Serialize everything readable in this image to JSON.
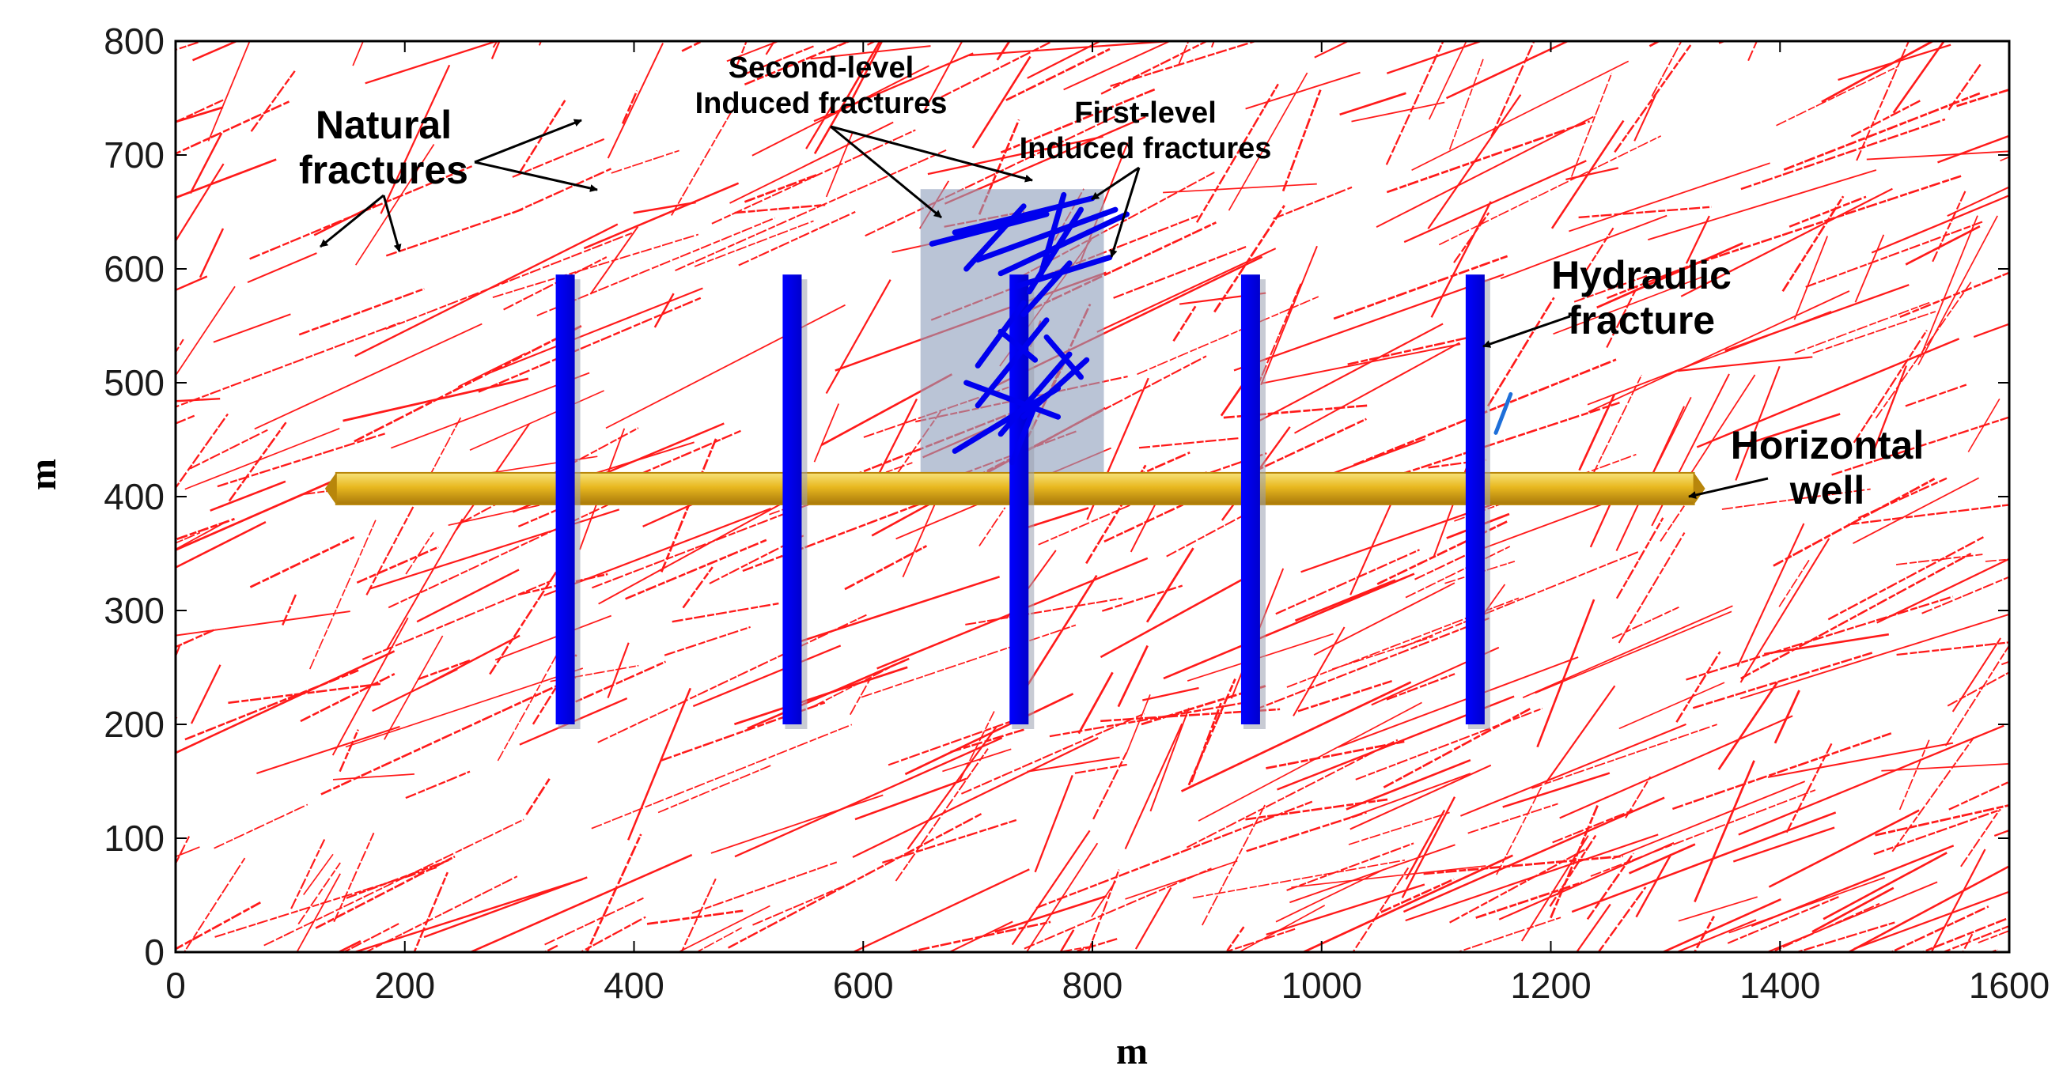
{
  "chart_data": {
    "type": "scatter",
    "title": "",
    "xlabel": "m",
    "ylabel": "m",
    "xlim": [
      0,
      1600
    ],
    "ylim": [
      0,
      800
    ],
    "x_ticks": [
      0,
      200,
      400,
      600,
      800,
      1000,
      1200,
      1400,
      1600
    ],
    "y_ticks": [
      0,
      100,
      200,
      300,
      400,
      500,
      600,
      700,
      800
    ],
    "x_tick_labels": [
      "0",
      "200",
      "400",
      "600",
      "800",
      "1000",
      "1200",
      "1400",
      "1600"
    ],
    "y_tick_labels": [
      "0",
      "100",
      "200",
      "300",
      "400",
      "500",
      "600",
      "700",
      "800"
    ],
    "colors": {
      "natural": "#ff1a1a",
      "hydraulic": "#0000ee",
      "well": "#e8b820",
      "well_dark": "#b8860b",
      "stimulated_zone": "#8f9fbd",
      "axis": "#000000"
    },
    "horizontal_well": {
      "x": [
        140,
        1325
      ],
      "y": 407
    },
    "hydraulic_fractures": [
      {
        "x": 340,
        "y": [
          200,
          595
        ]
      },
      {
        "x": 538,
        "y": [
          200,
          595
        ]
      },
      {
        "x": 736,
        "y": [
          200,
          595
        ]
      },
      {
        "x": 938,
        "y": [
          200,
          595
        ]
      },
      {
        "x": 1134,
        "y": [
          200,
          595
        ]
      }
    ],
    "stimulated_zone": {
      "x": [
        650,
        810
      ],
      "y": [
        420,
        670
      ]
    },
    "induced_fractures": [
      [
        660,
        622,
        760,
        648
      ],
      [
        680,
        632,
        800,
        662
      ],
      [
        700,
        608,
        820,
        652
      ],
      [
        720,
        596,
        830,
        648
      ],
      [
        735,
        585,
        815,
        610
      ],
      [
        740,
        560,
        780,
        605
      ],
      [
        690,
        600,
        740,
        655
      ],
      [
        745,
        580,
        790,
        652
      ],
      [
        755,
        595,
        775,
        665
      ],
      [
        700,
        480,
        760,
        555
      ],
      [
        720,
        455,
        780,
        525
      ],
      [
        680,
        440,
        770,
        495
      ],
      [
        690,
        500,
        770,
        470
      ],
      [
        730,
        430,
        750,
        480
      ],
      [
        720,
        545,
        750,
        520
      ],
      [
        700,
        515,
        740,
        570
      ],
      [
        740,
        470,
        795,
        520
      ],
      [
        760,
        540,
        790,
        505
      ]
    ],
    "minor_fracture": [
      1152,
      456,
      1165,
      490
    ],
    "annotations": {
      "natural": [
        "Natural",
        "fractures"
      ],
      "second_level": [
        "Second-level",
        "Induced fractures"
      ],
      "first_level": [
        "First-level",
        "Induced fractures"
      ],
      "hydraulic": [
        "Hydraulic",
        "fracture"
      ],
      "well": [
        "Horizontal",
        "well"
      ]
    }
  }
}
